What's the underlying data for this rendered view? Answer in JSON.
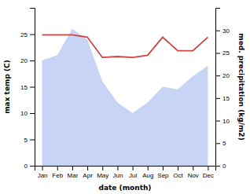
{
  "chart_data": {
    "type": "area",
    "x_label": "date (month)",
    "y_label": "max temp (C)",
    "y2_label": "med. precipitation (kg/m2)",
    "categories": [
      "Jan",
      "Feb",
      "Mar",
      "Apr",
      "May",
      "Jun",
      "Jul",
      "Aug",
      "Sep",
      "Oct",
      "Nov",
      "Dec"
    ],
    "series": [
      {
        "type": "area",
        "color": "#c8d4f5",
        "values": [
          20,
          21,
          26,
          24,
          16,
          12,
          10,
          12,
          15,
          14.5,
          17,
          19
        ]
      },
      {
        "type": "line",
        "color": "#cc4444",
        "axis": "y2",
        "values": [
          29,
          29,
          29,
          28.5,
          24,
          24.2,
          24,
          24.5,
          28.5,
          25.5,
          25.5,
          28.5
        ]
      }
    ],
    "ylim": [
      0,
      30
    ],
    "yticks": [
      0,
      5,
      10,
      15,
      20,
      25
    ],
    "y2lim": [
      0,
      35
    ],
    "y2ticks": [
      0,
      5,
      10,
      15,
      20,
      25,
      30
    ]
  }
}
